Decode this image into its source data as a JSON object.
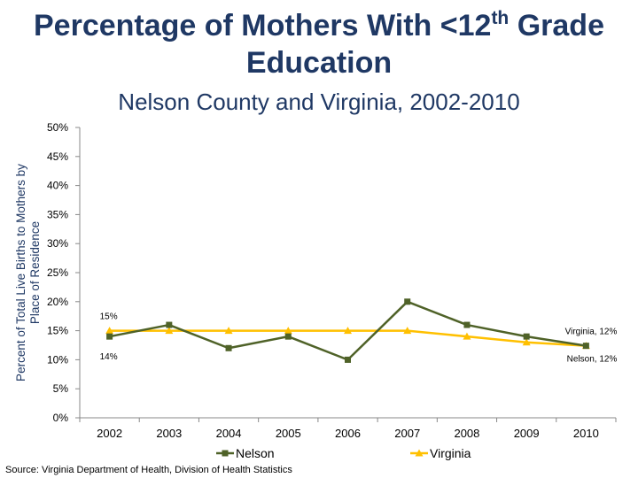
{
  "header": {
    "title_pre": "Percentage of Mothers With <12",
    "title_sup": "th",
    "title_post": " Grade",
    "title_line2": "Education",
    "subtitle": "Nelson County and Virginia, 2002-2010"
  },
  "footer": {
    "source": "Source: Virginia Department of Health, Division of Health Statistics"
  },
  "colors": {
    "nelson": "#4f6228",
    "virginia": "#ffc000",
    "title": "#1f3864"
  },
  "chart_data": {
    "type": "line",
    "title": "Percentage of Mothers With <12th Grade Education",
    "subtitle": "Nelson County and Virginia, 2002-2010",
    "xlabel": "",
    "ylabel": "Percent of Total Live Births to Mothers by Place of Residence",
    "ylabel_line1": "Percent of Total Live Births to Mothers by",
    "ylabel_line2": "Place of Residence",
    "categories": [
      "2002",
      "2003",
      "2004",
      "2005",
      "2006",
      "2007",
      "2008",
      "2009",
      "2010"
    ],
    "ylim": [
      0,
      50
    ],
    "yticks": [
      0,
      5,
      10,
      15,
      20,
      25,
      30,
      35,
      40,
      45,
      50
    ],
    "ytick_labels": [
      "0%",
      "5%",
      "10%",
      "15%",
      "20%",
      "25%",
      "30%",
      "35%",
      "40%",
      "45%",
      "50%"
    ],
    "grid": false,
    "legend_position": "bottom",
    "series": [
      {
        "name": "Nelson",
        "values": [
          14,
          16,
          12,
          14,
          10,
          20,
          16,
          14,
          12.4
        ],
        "marker": "square"
      },
      {
        "name": "Virginia",
        "values": [
          15,
          15,
          15,
          15,
          15,
          15,
          14,
          13,
          12.4
        ],
        "marker": "triangle"
      }
    ],
    "annotations": [
      {
        "text": "15%",
        "series": "Virginia",
        "index": 0,
        "position": "above"
      },
      {
        "text": "14%",
        "series": "Nelson",
        "index": 0,
        "position": "below"
      },
      {
        "text": "Virginia, 12%",
        "series": "Virginia",
        "index": 8,
        "position": "above-left"
      },
      {
        "text": "Nelson, 12%",
        "series": "Nelson",
        "index": 8,
        "position": "below-left"
      }
    ]
  }
}
